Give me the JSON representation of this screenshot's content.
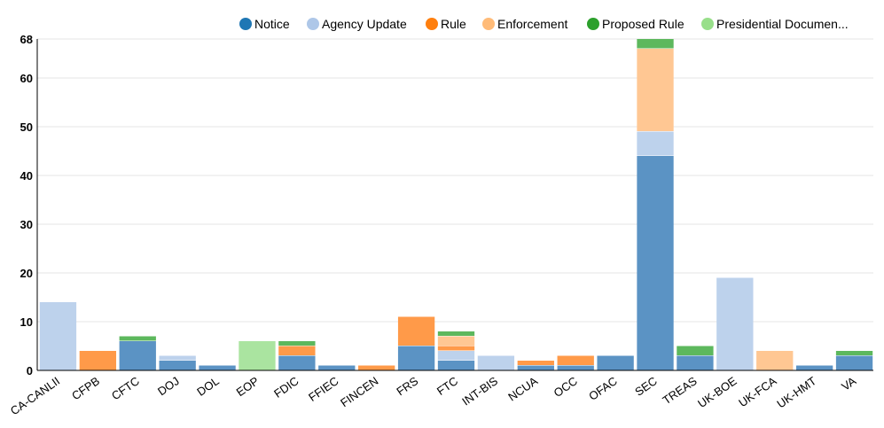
{
  "chart_data": {
    "type": "bar",
    "stacked": true,
    "categories": [
      "CA-CANLII",
      "CFPB",
      "CFTC",
      "DOJ",
      "DOL",
      "EOP",
      "FDIC",
      "FFIEC",
      "FINCEN",
      "FRS",
      "FTC",
      "INT-BIS",
      "NCUA",
      "OCC",
      "OFAC",
      "SEC",
      "TREAS",
      "UK-BOE",
      "UK-FCA",
      "UK-HMT",
      "VA"
    ],
    "category_labels": [
      "CA-CANLII",
      "CFPB",
      "CFTC",
      "DOJ",
      "DOL",
      "EOP",
      "FDIC",
      "FFIEC",
      "FINCEN",
      "FRS",
      "FTC",
      "INT-BIS",
      "NCUA",
      "OCC",
      "OFAC",
      "SEC",
      "TREAS",
      "UK-BOE",
      "UK-FCA",
      "UK-HMT",
      "VA"
    ],
    "series": [
      {
        "name": "Notice",
        "legend_label": "Notice",
        "color": "#1f77b4",
        "bar_color": "#5b93c4",
        "values": [
          0,
          0,
          6,
          2,
          1,
          0,
          3,
          1,
          0,
          5,
          2,
          0,
          1,
          1,
          3,
          44,
          3,
          0,
          0,
          1,
          3
        ]
      },
      {
        "name": "Agency Update",
        "legend_label": "Agency Update",
        "color": "#aec7e8",
        "bar_color": "#bdd2ec",
        "values": [
          14,
          0,
          0,
          1,
          0,
          0,
          0,
          0,
          0,
          0,
          2,
          3,
          0,
          0,
          0,
          5,
          0,
          19,
          0,
          0,
          0
        ]
      },
      {
        "name": "Rule",
        "legend_label": "Rule",
        "color": "#ff7f0e",
        "bar_color": "#ff9a49",
        "values": [
          0,
          4,
          0,
          0,
          0,
          0,
          2,
          0,
          1,
          6,
          1,
          0,
          1,
          2,
          0,
          0,
          0,
          0,
          0,
          0,
          0
        ]
      },
      {
        "name": "Enforcement",
        "legend_label": "Enforcement",
        "color": "#ffbb78",
        "bar_color": "#ffc793",
        "values": [
          0,
          0,
          0,
          0,
          0,
          0,
          0,
          0,
          0,
          0,
          2,
          0,
          0,
          0,
          0,
          17,
          0,
          0,
          4,
          0,
          0
        ]
      },
      {
        "name": "Proposed Rule",
        "legend_label": "Proposed Rule",
        "color": "#2ca02c",
        "bar_color": "#5db85d",
        "values": [
          0,
          0,
          1,
          0,
          0,
          0,
          1,
          0,
          0,
          0,
          1,
          0,
          0,
          0,
          0,
          2,
          2,
          0,
          0,
          0,
          1
        ]
      },
      {
        "name": "Presidential Document",
        "legend_label": "Presidential Documen...",
        "color": "#98df8a",
        "bar_color": "#aae4a0",
        "values": [
          0,
          0,
          0,
          0,
          0,
          6,
          0,
          0,
          0,
          0,
          0,
          0,
          0,
          0,
          0,
          0,
          0,
          0,
          0,
          0,
          0
        ]
      }
    ],
    "y_ticks": [
      0,
      10,
      20,
      30,
      40,
      50,
      60,
      68
    ],
    "ylim": [
      0,
      68
    ],
    "grid": true,
    "legend_position": "top-right",
    "title": "",
    "xlabel": "",
    "ylabel": ""
  }
}
